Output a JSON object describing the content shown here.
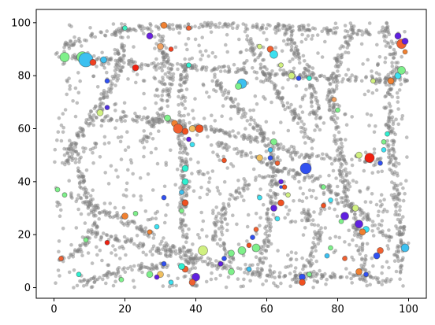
{
  "chart_data": {
    "type": "scatter",
    "title": "",
    "xlabel": "",
    "ylabel": "",
    "xlim": [
      -5,
      105
    ],
    "ylim": [
      -4,
      105
    ],
    "x_ticks": [
      0,
      20,
      40,
      60,
      80,
      100
    ],
    "y_ticks": [
      0,
      20,
      40,
      60,
      80,
      100
    ],
    "x_tick_labels": [
      "0",
      "20",
      "40",
      "60",
      "80",
      "100"
    ],
    "y_tick_labels": [
      "0",
      "20",
      "40",
      "60",
      "80",
      "100"
    ],
    "grid": false,
    "legend": "none",
    "background_points": {
      "color": "#808080",
      "alpha": 0.5,
      "description": "thousands of small grey points forming filament-like structures",
      "estimated_count": 3000
    },
    "filaments": [
      [
        [
          20,
          100
        ],
        [
          18,
          80
        ],
        [
          12,
          68
        ],
        [
          6,
          55
        ],
        [
          2,
          45
        ]
      ],
      [
        [
          0,
          88
        ],
        [
          12,
          86
        ],
        [
          25,
          84
        ],
        [
          40,
          83
        ],
        [
          55,
          82
        ],
        [
          70,
          80
        ],
        [
          85,
          79
        ],
        [
          100,
          78
        ]
      ],
      [
        [
          37,
          85
        ],
        [
          36,
          70
        ],
        [
          36,
          55
        ],
        [
          37,
          40
        ],
        [
          36,
          25
        ],
        [
          38,
          12
        ],
        [
          40,
          0
        ]
      ],
      [
        [
          10,
          64
        ],
        [
          20,
          64
        ],
        [
          30,
          63
        ],
        [
          40,
          61
        ],
        [
          50,
          58
        ],
        [
          60,
          55
        ],
        [
          70,
          50
        ],
        [
          80,
          49
        ],
        [
          92,
          48
        ]
      ],
      [
        [
          45,
          80
        ],
        [
          50,
          70
        ],
        [
          58,
          60
        ],
        [
          62,
          48
        ],
        [
          62,
          35
        ],
        [
          60,
          20
        ],
        [
          58,
          5
        ]
      ],
      [
        [
          85,
          100
        ],
        [
          80,
          85
        ],
        [
          78,
          70
        ],
        [
          80,
          55
        ],
        [
          82,
          40
        ],
        [
          85,
          25
        ],
        [
          88,
          5
        ]
      ],
      [
        [
          5,
          35
        ],
        [
          15,
          28
        ],
        [
          25,
          22
        ],
        [
          33,
          15
        ],
        [
          42,
          10
        ],
        [
          55,
          6
        ],
        [
          68,
          4
        ],
        [
          80,
          5
        ],
        [
          95,
          2
        ]
      ],
      [
        [
          10,
          20
        ],
        [
          20,
          18
        ],
        [
          30,
          14
        ],
        [
          40,
          10
        ]
      ],
      [
        [
          45,
          55
        ],
        [
          55,
          50
        ],
        [
          65,
          44
        ],
        [
          75,
          40
        ],
        [
          85,
          30
        ],
        [
          95,
          18
        ]
      ],
      [
        [
          5,
          0
        ],
        [
          15,
          5
        ],
        [
          25,
          8
        ],
        [
          35,
          8
        ]
      ],
      [
        [
          65,
          100
        ],
        [
          68,
          90
        ],
        [
          72,
          80
        ],
        [
          75,
          60
        ]
      ],
      [
        [
          30,
          95
        ],
        [
          33,
          80
        ],
        [
          30,
          65
        ],
        [
          25,
          55
        ]
      ],
      [
        [
          93,
          100
        ],
        [
          96,
          85
        ],
        [
          94,
          70
        ],
        [
          95,
          55
        ],
        [
          96,
          40
        ],
        [
          98,
          20
        ],
        [
          97,
          5
        ]
      ],
      [
        [
          2,
          90
        ],
        [
          10,
          95
        ],
        [
          25,
          98
        ],
        [
          45,
          99
        ],
        [
          70,
          98
        ],
        [
          90,
          96
        ]
      ],
      [
        [
          55,
          40
        ],
        [
          48,
          30
        ],
        [
          45,
          20
        ],
        [
          50,
          10
        ]
      ],
      [
        [
          70,
          30
        ],
        [
          75,
          20
        ],
        [
          72,
          10
        ],
        [
          68,
          2
        ]
      ],
      [
        [
          2,
          10
        ],
        [
          8,
          15
        ],
        [
          12,
          25
        ],
        [
          8,
          40
        ],
        [
          5,
          55
        ]
      ],
      [
        [
          55,
          95
        ],
        [
          58,
          85
        ],
        [
          62,
          75
        ],
        [
          68,
          65
        ],
        [
          72,
          55
        ]
      ]
    ],
    "clusters": [
      {
        "x": 3,
        "y": 87,
        "size": 6,
        "color": "#7ef08a"
      },
      {
        "x": 8,
        "y": 87,
        "size": 7,
        "color": "#7ef08a"
      },
      {
        "x": 9,
        "y": 86,
        "size": 9,
        "color": "#3cc0f0"
      },
      {
        "x": 11,
        "y": 85,
        "size": 4,
        "color": "#f04020"
      },
      {
        "x": 14,
        "y": 86,
        "size": 4,
        "color": "#3cc0f0"
      },
      {
        "x": 20,
        "y": 98,
        "size": 3,
        "color": "#3cf0c0"
      },
      {
        "x": 31,
        "y": 99,
        "size": 4,
        "color": "#f08030"
      },
      {
        "x": 27,
        "y": 95,
        "size": 4,
        "color": "#6a20e0"
      },
      {
        "x": 30,
        "y": 91,
        "size": 4,
        "color": "#f0a060"
      },
      {
        "x": 33,
        "y": 90,
        "size": 3,
        "color": "#f04020"
      },
      {
        "x": 38,
        "y": 98,
        "size": 3,
        "color": "#f06030"
      },
      {
        "x": 38,
        "y": 84,
        "size": 3,
        "color": "#2ef0d0"
      },
      {
        "x": 23,
        "y": 83,
        "size": 4,
        "color": "#f02010"
      },
      {
        "x": 15,
        "y": 78,
        "size": 3,
        "color": "#3050f0"
      },
      {
        "x": 15,
        "y": 68,
        "size": 3,
        "color": "#5030e0"
      },
      {
        "x": 13,
        "y": 66,
        "size": 4,
        "color": "#d0f080"
      },
      {
        "x": 32,
        "y": 64,
        "size": 4,
        "color": "#7ef08a"
      },
      {
        "x": 34,
        "y": 62,
        "size": 4,
        "color": "#f08030"
      },
      {
        "x": 35,
        "y": 60,
        "size": 6,
        "color": "#f06030"
      },
      {
        "x": 37,
        "y": 59,
        "size": 4,
        "color": "#f05020"
      },
      {
        "x": 39,
        "y": 60,
        "size": 4,
        "color": "#f0c060"
      },
      {
        "x": 41,
        "y": 60,
        "size": 5,
        "color": "#f05020"
      },
      {
        "x": 38,
        "y": 56,
        "size": 3,
        "color": "#6020e0"
      },
      {
        "x": 39,
        "y": 54,
        "size": 3,
        "color": "#3ce0f0"
      },
      {
        "x": 37,
        "y": 45,
        "size": 4,
        "color": "#2ef0d0"
      },
      {
        "x": 37,
        "y": 40,
        "size": 4,
        "color": "#2ef0d0"
      },
      {
        "x": 36,
        "y": 36,
        "size": 3,
        "color": "#3cc0f0"
      },
      {
        "x": 31,
        "y": 34,
        "size": 3,
        "color": "#3050f0"
      },
      {
        "x": 37,
        "y": 32,
        "size": 4,
        "color": "#f05020"
      },
      {
        "x": 36,
        "y": 29,
        "size": 3,
        "color": "#7ef08a"
      },
      {
        "x": 48,
        "y": 48,
        "size": 3,
        "color": "#f05020"
      },
      {
        "x": 53,
        "y": 77,
        "size": 6,
        "color": "#3cc0f0"
      },
      {
        "x": 52,
        "y": 76,
        "size": 4,
        "color": "#7ef08a"
      },
      {
        "x": 58,
        "y": 91,
        "size": 3,
        "color": "#d0f080"
      },
      {
        "x": 61,
        "y": 90,
        "size": 4,
        "color": "#f06030"
      },
      {
        "x": 62,
        "y": 88,
        "size": 5,
        "color": "#3ce0f0"
      },
      {
        "x": 64,
        "y": 84,
        "size": 3,
        "color": "#d0f080"
      },
      {
        "x": 67,
        "y": 80,
        "size": 4,
        "color": "#d0f080"
      },
      {
        "x": 69,
        "y": 79,
        "size": 3,
        "color": "#3050f0"
      },
      {
        "x": 72,
        "y": 79,
        "size": 3,
        "color": "#2ef0d0"
      },
      {
        "x": 79,
        "y": 71,
        "size": 3,
        "color": "#f0a060"
      },
      {
        "x": 80,
        "y": 67,
        "size": 3,
        "color": "#7ef08a"
      },
      {
        "x": 90,
        "y": 78,
        "size": 3,
        "color": "#d0f080"
      },
      {
        "x": 95,
        "y": 78,
        "size": 4,
        "color": "#f08030"
      },
      {
        "x": 97,
        "y": 80,
        "size": 4,
        "color": "#3ce0f0"
      },
      {
        "x": 98,
        "y": 82,
        "size": 5,
        "color": "#7ef08a"
      },
      {
        "x": 97,
        "y": 95,
        "size": 4,
        "color": "#6020e0"
      },
      {
        "x": 98,
        "y": 92,
        "size": 6,
        "color": "#f06030"
      },
      {
        "x": 99,
        "y": 93,
        "size": 4,
        "color": "#6020e0"
      },
      {
        "x": 99,
        "y": 89,
        "size": 3,
        "color": "#f08030"
      },
      {
        "x": 62,
        "y": 55,
        "size": 4,
        "color": "#7ef08a"
      },
      {
        "x": 61,
        "y": 52,
        "size": 3,
        "color": "#3cc0f0"
      },
      {
        "x": 58,
        "y": 49,
        "size": 4,
        "color": "#f0c060"
      },
      {
        "x": 61,
        "y": 49,
        "size": 3,
        "color": "#3050f0"
      },
      {
        "x": 63,
        "y": 47,
        "size": 3,
        "color": "#f06030"
      },
      {
        "x": 71,
        "y": 45,
        "size": 7,
        "color": "#3050f0"
      },
      {
        "x": 64,
        "y": 40,
        "size": 3,
        "color": "#6020e0"
      },
      {
        "x": 65,
        "y": 38,
        "size": 3,
        "color": "#f05020"
      },
      {
        "x": 66,
        "y": 35,
        "size": 3,
        "color": "#d0f080"
      },
      {
        "x": 64,
        "y": 32,
        "size": 4,
        "color": "#f05020"
      },
      {
        "x": 62,
        "y": 30,
        "size": 4,
        "color": "#6020e0"
      },
      {
        "x": 63,
        "y": 26,
        "size": 3,
        "color": "#3ce0f0"
      },
      {
        "x": 58,
        "y": 34,
        "size": 3,
        "color": "#3ce0f0"
      },
      {
        "x": 78,
        "y": 33,
        "size": 3,
        "color": "#3ce0f0"
      },
      {
        "x": 82,
        "y": 27,
        "size": 5,
        "color": "#6020e0"
      },
      {
        "x": 85,
        "y": 30,
        "size": 4,
        "color": "#d0f080"
      },
      {
        "x": 86,
        "y": 24,
        "size": 5,
        "color": "#6020e0"
      },
      {
        "x": 88,
        "y": 22,
        "size": 4,
        "color": "#3ce0f0"
      },
      {
        "x": 87,
        "y": 21,
        "size": 4,
        "color": "#f08030"
      },
      {
        "x": 81,
        "y": 25,
        "size": 3,
        "color": "#7ef08a"
      },
      {
        "x": 86,
        "y": 50,
        "size": 4,
        "color": "#d0f080"
      },
      {
        "x": 89,
        "y": 49,
        "size": 6,
        "color": "#f02010"
      },
      {
        "x": 92,
        "y": 47,
        "size": 3,
        "color": "#3050f0"
      },
      {
        "x": 93,
        "y": 52,
        "size": 3,
        "color": "#3ce0f0"
      },
      {
        "x": 93,
        "y": 55,
        "size": 3,
        "color": "#7ef08a"
      },
      {
        "x": 94,
        "y": 58,
        "size": 3,
        "color": "#2ef0d0"
      },
      {
        "x": 92,
        "y": 14,
        "size": 4,
        "color": "#f06030"
      },
      {
        "x": 91,
        "y": 12,
        "size": 4,
        "color": "#3050f0"
      },
      {
        "x": 99,
        "y": 15,
        "size": 5,
        "color": "#3cc0f0"
      },
      {
        "x": 86,
        "y": 6,
        "size": 4,
        "color": "#f08030"
      },
      {
        "x": 88,
        "y": 5,
        "size": 3,
        "color": "#3050f0"
      },
      {
        "x": 82,
        "y": 11,
        "size": 3,
        "color": "#f06030"
      },
      {
        "x": 78,
        "y": 15,
        "size": 3,
        "color": "#7ef08a"
      },
      {
        "x": 77,
        "y": 12,
        "size": 3,
        "color": "#3cc0f0"
      },
      {
        "x": 70,
        "y": 4,
        "size": 4,
        "color": "#3050f0"
      },
      {
        "x": 70,
        "y": 2,
        "size": 4,
        "color": "#f05020"
      },
      {
        "x": 72,
        "y": 5,
        "size": 3,
        "color": "#7ef08a"
      },
      {
        "x": 57,
        "y": 15,
        "size": 5,
        "color": "#7ef08a"
      },
      {
        "x": 53,
        "y": 14,
        "size": 5,
        "color": "#7ef08a"
      },
      {
        "x": 50,
        "y": 13,
        "size": 4,
        "color": "#7ef08a"
      },
      {
        "x": 55,
        "y": 16,
        "size": 3,
        "color": "#f05020"
      },
      {
        "x": 56,
        "y": 19,
        "size": 3,
        "color": "#3050f0"
      },
      {
        "x": 57,
        "y": 22,
        "size": 3,
        "color": "#f06030"
      },
      {
        "x": 48,
        "y": 11,
        "size": 3,
        "color": "#3050f0"
      },
      {
        "x": 47,
        "y": 9,
        "size": 3,
        "color": "#6020e0"
      },
      {
        "x": 55,
        "y": 7,
        "size": 3,
        "color": "#3cc0f0"
      },
      {
        "x": 50,
        "y": 6,
        "size": 4,
        "color": "#7ef08a"
      },
      {
        "x": 42,
        "y": 14,
        "size": 6,
        "color": "#d0f080"
      },
      {
        "x": 40,
        "y": 4,
        "size": 5,
        "color": "#6020e0"
      },
      {
        "x": 39,
        "y": 2,
        "size": 4,
        "color": "#f06030"
      },
      {
        "x": 37,
        "y": 7,
        "size": 4,
        "color": "#f06030"
      },
      {
        "x": 36,
        "y": 8,
        "size": 4,
        "color": "#2ef0d0"
      },
      {
        "x": 31,
        "y": 9,
        "size": 3,
        "color": "#3050f0"
      },
      {
        "x": 30,
        "y": 5,
        "size": 4,
        "color": "#f0c060"
      },
      {
        "x": 27,
        "y": 5,
        "size": 4,
        "color": "#7ef08a"
      },
      {
        "x": 29,
        "y": 4,
        "size": 3,
        "color": "#6020e0"
      },
      {
        "x": 33,
        "y": 2,
        "size": 3,
        "color": "#3ce0f0"
      },
      {
        "x": 27,
        "y": 21,
        "size": 3,
        "color": "#f08030"
      },
      {
        "x": 29,
        "y": 23,
        "size": 3,
        "color": "#3ce0f0"
      },
      {
        "x": 20,
        "y": 27,
        "size": 4,
        "color": "#f08030"
      },
      {
        "x": 23,
        "y": 28,
        "size": 3,
        "color": "#7ef08a"
      },
      {
        "x": 9,
        "y": 18,
        "size": 3,
        "color": "#7ef08a"
      },
      {
        "x": 15,
        "y": 17,
        "size": 3,
        "color": "#f02010"
      },
      {
        "x": 2,
        "y": 11,
        "size": 3,
        "color": "#f06030"
      },
      {
        "x": 7,
        "y": 5,
        "size": 3,
        "color": "#2ef0d0"
      },
      {
        "x": 19,
        "y": 3,
        "size": 3,
        "color": "#7ef08a"
      },
      {
        "x": 1,
        "y": 37,
        "size": 3,
        "color": "#7ef08a"
      },
      {
        "x": 3,
        "y": 35,
        "size": 3,
        "color": "#7ef08a"
      },
      {
        "x": 76,
        "y": 38,
        "size": 3,
        "color": "#7ef08a"
      },
      {
        "x": 76,
        "y": 31,
        "size": 3,
        "color": "#f05020"
      },
      {
        "x": 64,
        "y": 38,
        "size": 2,
        "color": "#3050f0"
      }
    ]
  }
}
